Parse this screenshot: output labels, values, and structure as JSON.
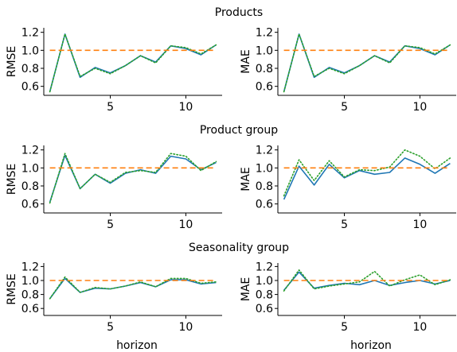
{
  "colors": {
    "baseline": "#ff7f0e",
    "series_a": "#1f77b4",
    "series_b": "#2ca02c"
  },
  "xlabel": "horizon",
  "chart_data": [
    {
      "type": "line",
      "title": "Products",
      "ylabel": "RMSE",
      "xlim": [
        0.6,
        12.4
      ],
      "ylim": [
        0.5,
        1.25
      ],
      "xticks": [
        5,
        10
      ],
      "yticks": [
        0.6,
        0.8,
        1.0,
        1.2
      ],
      "x": [
        1,
        2,
        3,
        4,
        5,
        6,
        7,
        8,
        9,
        10,
        11,
        12
      ],
      "series": [
        {
          "style": "solid",
          "values": [
            0.54,
            1.18,
            0.7,
            0.81,
            0.75,
            0.83,
            0.94,
            0.87,
            1.05,
            1.02,
            0.95,
            1.06
          ]
        },
        {
          "style": "dotted",
          "values": [
            0.54,
            1.18,
            0.71,
            0.8,
            0.74,
            0.83,
            0.94,
            0.86,
            1.05,
            1.03,
            0.96,
            1.06
          ]
        },
        {
          "style": "dashed",
          "values": [
            1.0,
            1.0,
            1.0,
            1.0,
            1.0,
            1.0,
            1.0,
            1.0,
            1.0,
            1.0,
            1.0,
            1.0
          ]
        }
      ]
    },
    {
      "type": "line",
      "title": "",
      "ylabel": "MAE",
      "xlim": [
        0.6,
        12.4
      ],
      "ylim": [
        0.5,
        1.25
      ],
      "xticks": [
        5,
        10
      ],
      "yticks": [
        0.6,
        0.8,
        1.0,
        1.2
      ],
      "x": [
        1,
        2,
        3,
        4,
        5,
        6,
        7,
        8,
        9,
        10,
        11,
        12
      ],
      "series": [
        {
          "style": "solid",
          "values": [
            0.54,
            1.18,
            0.7,
            0.81,
            0.75,
            0.83,
            0.94,
            0.87,
            1.05,
            1.02,
            0.95,
            1.06
          ]
        },
        {
          "style": "dotted",
          "values": [
            0.54,
            1.18,
            0.71,
            0.8,
            0.74,
            0.83,
            0.94,
            0.86,
            1.05,
            1.03,
            0.96,
            1.06
          ]
        },
        {
          "style": "dashed",
          "values": [
            1.0,
            1.0,
            1.0,
            1.0,
            1.0,
            1.0,
            1.0,
            1.0,
            1.0,
            1.0,
            1.0,
            1.0
          ]
        }
      ]
    },
    {
      "type": "line",
      "title": "Product group",
      "ylabel": "RMSE",
      "xlim": [
        0.6,
        12.4
      ],
      "ylim": [
        0.5,
        1.25
      ],
      "xticks": [
        5,
        10
      ],
      "yticks": [
        0.6,
        0.8,
        1.0,
        1.2
      ],
      "x": [
        1,
        2,
        3,
        4,
        5,
        6,
        7,
        8,
        9,
        10,
        11,
        12
      ],
      "series": [
        {
          "style": "solid",
          "values": [
            0.62,
            1.14,
            0.77,
            0.93,
            0.83,
            0.94,
            0.98,
            0.94,
            1.13,
            1.1,
            0.98,
            1.06
          ]
        },
        {
          "style": "dotted",
          "values": [
            0.61,
            1.16,
            0.77,
            0.93,
            0.84,
            0.95,
            0.97,
            0.95,
            1.16,
            1.13,
            0.97,
            1.07
          ]
        },
        {
          "style": "dashed",
          "values": [
            1.0,
            1.0,
            1.0,
            1.0,
            1.0,
            1.0,
            1.0,
            1.0,
            1.0,
            1.0,
            1.0,
            1.0
          ]
        }
      ]
    },
    {
      "type": "line",
      "title": "",
      "ylabel": "MAE",
      "xlim": [
        0.6,
        12.4
      ],
      "ylim": [
        0.5,
        1.25
      ],
      "xticks": [
        5,
        10
      ],
      "yticks": [
        0.6,
        0.8,
        1.0,
        1.2
      ],
      "x": [
        1,
        2,
        3,
        4,
        5,
        6,
        7,
        8,
        9,
        10,
        11,
        12
      ],
      "series": [
        {
          "style": "solid",
          "values": [
            0.65,
            1.02,
            0.81,
            1.04,
            0.89,
            0.97,
            0.93,
            0.95,
            1.11,
            1.04,
            0.94,
            1.05
          ]
        },
        {
          "style": "dotted",
          "values": [
            0.69,
            1.09,
            0.86,
            1.08,
            0.9,
            0.98,
            0.97,
            1.01,
            1.2,
            1.13,
            0.99,
            1.11
          ]
        },
        {
          "style": "dashed",
          "values": [
            1.0,
            1.0,
            1.0,
            1.0,
            1.0,
            1.0,
            1.0,
            1.0,
            1.0,
            1.0,
            1.0,
            1.0
          ]
        }
      ]
    },
    {
      "type": "line",
      "title": "Seasonality group",
      "ylabel": "RMSE",
      "xlim": [
        0.6,
        12.4
      ],
      "ylim": [
        0.5,
        1.25
      ],
      "xticks": [
        5,
        10
      ],
      "yticks": [
        0.6,
        0.8,
        1.0,
        1.2
      ],
      "x": [
        1,
        2,
        3,
        4,
        5,
        6,
        7,
        8,
        9,
        10,
        11,
        12
      ],
      "series": [
        {
          "style": "solid",
          "values": [
            0.74,
            1.03,
            0.83,
            0.89,
            0.88,
            0.92,
            0.97,
            0.91,
            1.01,
            1.01,
            0.95,
            0.97
          ]
        },
        {
          "style": "dotted",
          "values": [
            0.74,
            1.05,
            0.83,
            0.9,
            0.88,
            0.92,
            0.98,
            0.91,
            1.03,
            1.03,
            0.96,
            0.98
          ]
        },
        {
          "style": "dashed",
          "values": [
            1.0,
            1.0,
            1.0,
            1.0,
            1.0,
            1.0,
            1.0,
            1.0,
            1.0,
            1.0,
            1.0,
            1.0
          ]
        }
      ]
    },
    {
      "type": "line",
      "title": "",
      "ylabel": "MAE",
      "xlim": [
        0.6,
        12.4
      ],
      "ylim": [
        0.5,
        1.25
      ],
      "xticks": [
        5,
        10
      ],
      "yticks": [
        0.6,
        0.8,
        1.0,
        1.2
      ],
      "x": [
        1,
        2,
        3,
        4,
        5,
        6,
        7,
        8,
        9,
        10,
        11,
        12
      ],
      "series": [
        {
          "style": "solid",
          "values": [
            0.86,
            1.12,
            0.89,
            0.93,
            0.96,
            0.94,
            1.0,
            0.93,
            0.97,
            1.0,
            0.95,
            1.0
          ]
        },
        {
          "style": "dotted",
          "values": [
            0.85,
            1.15,
            0.88,
            0.92,
            0.95,
            0.98,
            1.13,
            0.92,
            1.01,
            1.08,
            0.94,
            1.01
          ]
        },
        {
          "style": "dashed",
          "values": [
            1.0,
            1.0,
            1.0,
            1.0,
            1.0,
            1.0,
            1.0,
            1.0,
            1.0,
            1.0,
            1.0,
            1.0
          ]
        }
      ]
    }
  ]
}
